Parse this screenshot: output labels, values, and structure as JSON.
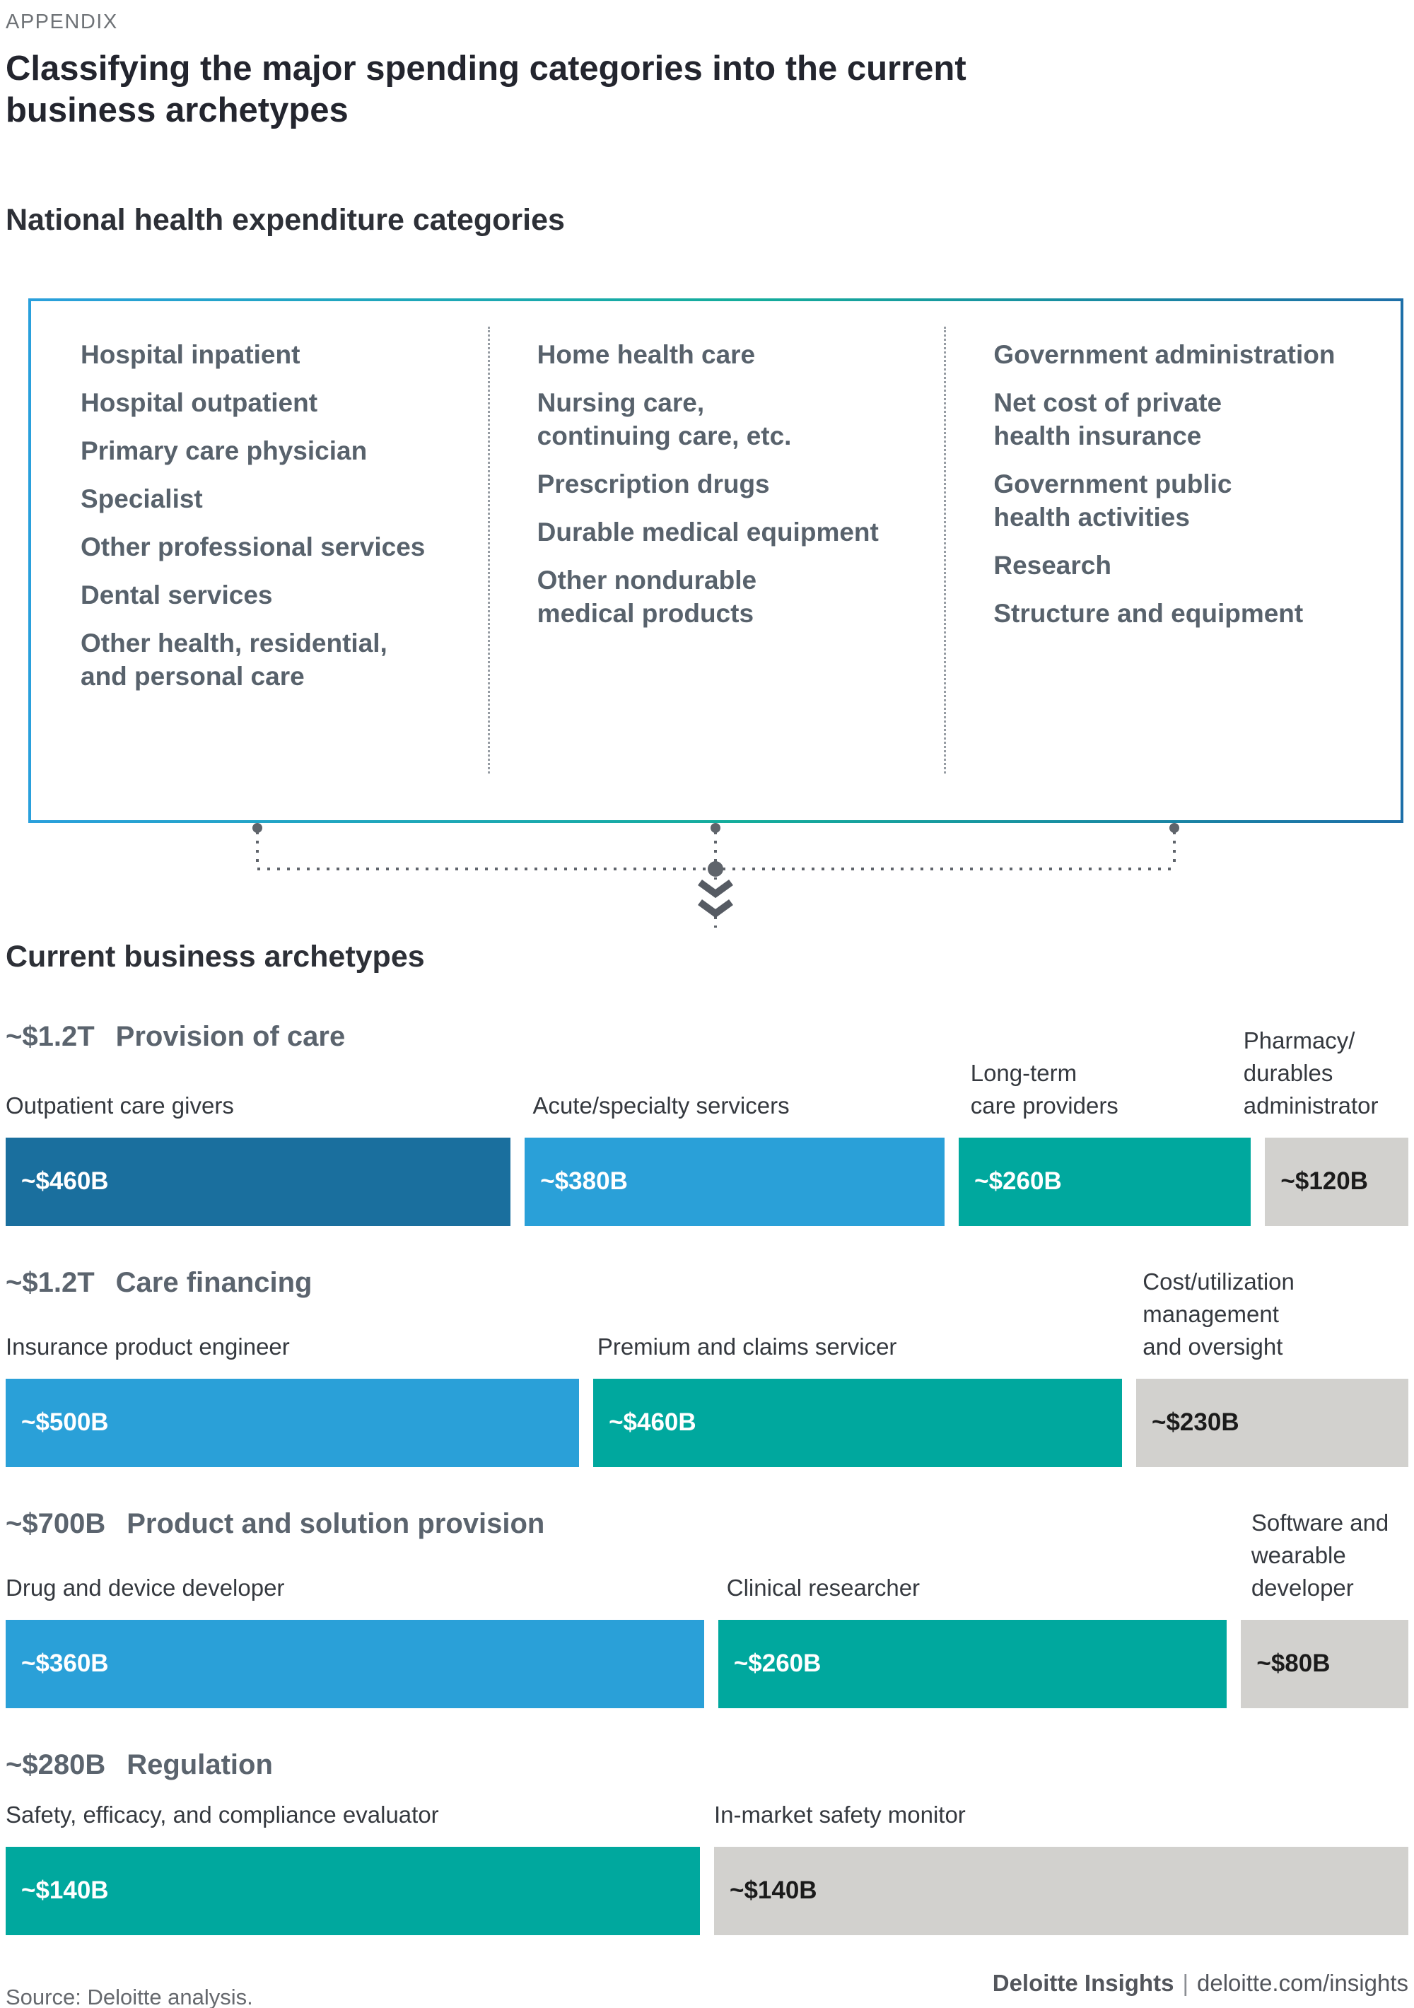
{
  "eyebrow": "APPENDIX",
  "title": "Classifying the major spending categories into the current\nbusiness archetypes",
  "section1_heading": "National health expenditure categories",
  "section2_heading": "Current business archetypes",
  "nhe_box": {
    "columns": [
      {
        "items": [
          "Hospital inpatient",
          "Hospital outpatient",
          "Primary care physician",
          "Specialist",
          "Other professional services",
          "Dental services",
          "Other health, residential,\nand personal care"
        ]
      },
      {
        "items": [
          "Home health care",
          "Nursing care,\ncontinuing care, etc.",
          "Prescription drugs",
          "Durable medical equipment",
          "Other nondurable\nmedical products"
        ]
      },
      {
        "items": [
          "Government administration",
          "Net cost of private\nhealth insurance",
          "Government public\nhealth activities",
          "Research",
          "Structure and equipment"
        ]
      }
    ]
  },
  "palette": {
    "dark_blue": "#1a6f9e",
    "blue": "#2aa0d8",
    "teal": "#00a89e",
    "gray": "#d2d1ce",
    "bar_text_light": "#ffffff",
    "bar_text_dark": "#1b1b1b",
    "border_gradient_left": "#2aa0dc",
    "border_gradient_mid": "#14ad9b",
    "border_gradient_right": "#1d6fa8",
    "connector": "#5f646b"
  },
  "chart_data": {
    "type": "bar",
    "title": "Current business archetypes",
    "unit": "USD, approximate, B = billions, T = trillions",
    "groups": [
      {
        "amount": "~$1.2T",
        "name": "Provision of care",
        "segments": [
          {
            "label": "Outpatient care givers",
            "value": 460,
            "value_label": "~$460B",
            "color": "dark_blue"
          },
          {
            "label": "Acute/specialty servicers",
            "value": 380,
            "value_label": "~$380B",
            "color": "blue"
          },
          {
            "label": "Long-term\ncare providers",
            "value": 260,
            "value_label": "~$260B",
            "color": "teal"
          },
          {
            "label": "Pharmacy/\ndurables\nadministrator",
            "value": 120,
            "value_label": "~$120B",
            "color": "gray"
          }
        ]
      },
      {
        "amount": "~$1.2T",
        "name": "Care financing",
        "segments": [
          {
            "label": "Insurance product engineer",
            "value": 500,
            "value_label": "~$500B",
            "color": "blue"
          },
          {
            "label": "Premium and claims servicer",
            "value": 460,
            "value_label": "~$460B",
            "color": "teal"
          },
          {
            "label": "Cost/utilization\nmanagement\nand oversight",
            "value": 230,
            "value_label": "~$230B",
            "color": "gray"
          }
        ]
      },
      {
        "amount": "~$700B",
        "name": "Product and solution provision",
        "segments": [
          {
            "label": "Drug and device developer",
            "value": 360,
            "value_label": "~$360B",
            "color": "blue"
          },
          {
            "label": "Clinical researcher",
            "value": 260,
            "value_label": "~$260B",
            "color": "teal"
          },
          {
            "label": "Software and\nwearable\ndeveloper",
            "value": 80,
            "value_label": "~$80B",
            "color": "gray"
          }
        ]
      },
      {
        "amount": "~$280B",
        "name": "Regulation",
        "segments": [
          {
            "label": "Safety, efficacy, and compliance evaluator",
            "value": 140,
            "value_label": "~$140B",
            "color": "teal"
          },
          {
            "label": "In-market safety monitor",
            "value": 140,
            "value_label": "~$140B",
            "color": "gray"
          }
        ]
      }
    ]
  },
  "footer": {
    "source": "Source: Deloitte analysis.",
    "brand": "Deloitte Insights",
    "separator": "|",
    "site": "deloitte.com/insights"
  }
}
